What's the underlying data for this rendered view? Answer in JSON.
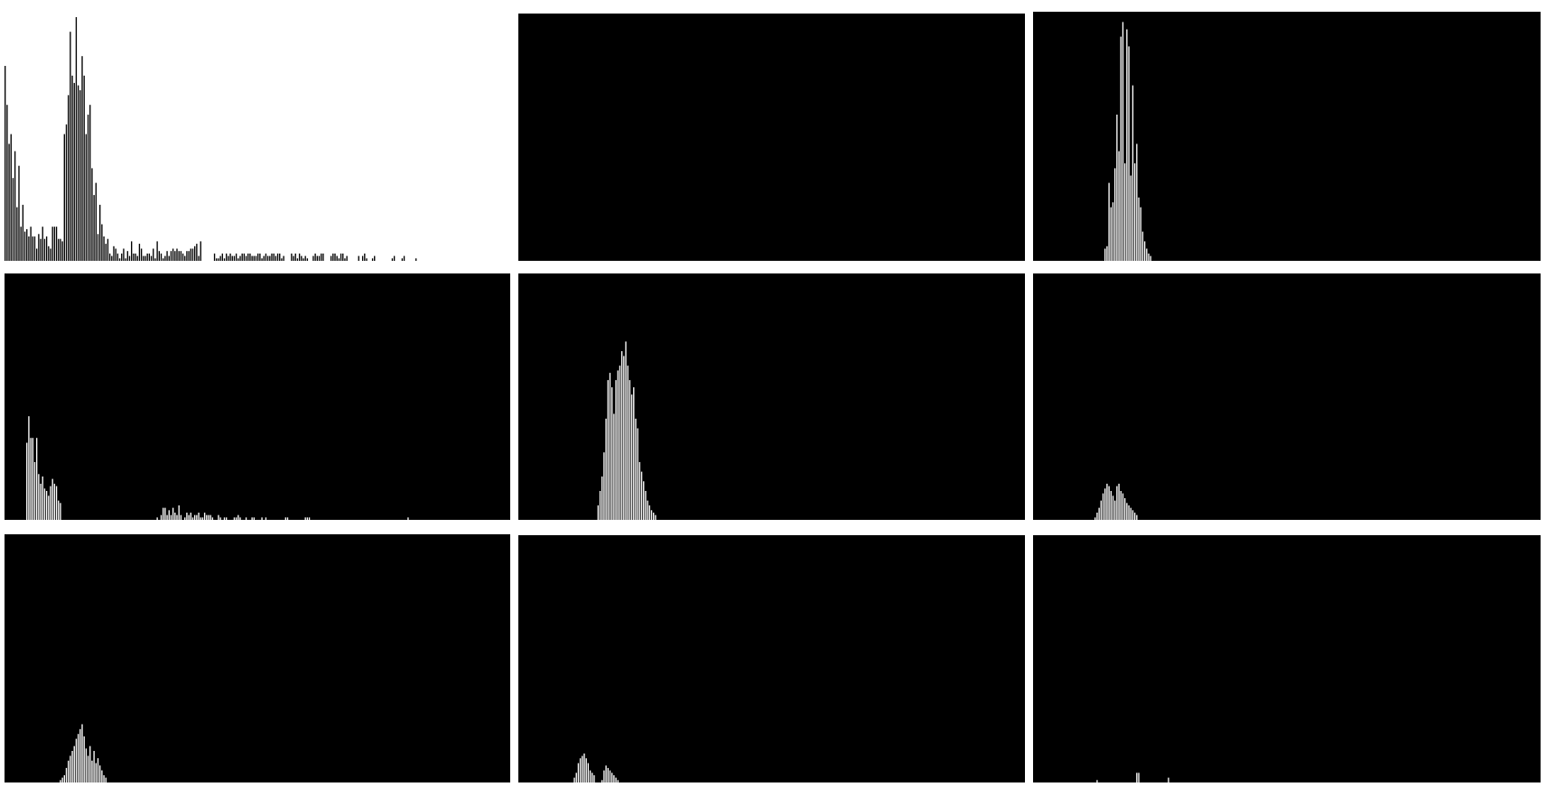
{
  "chart_data": [
    {
      "type": "bar",
      "title": "",
      "xlabel": "",
      "ylabel": "",
      "grid": false,
      "background": "#ffffff",
      "bar_color": "#000000",
      "ylim": [
        0,
        100
      ],
      "x_domain": [
        0,
        256
      ],
      "start": 0,
      "values": [
        80,
        64,
        48,
        52,
        34,
        45,
        22,
        39,
        14,
        23,
        12,
        13,
        10,
        14,
        10,
        10,
        5,
        11,
        9,
        14,
        9,
        10,
        6,
        5,
        14,
        14,
        14,
        9,
        9,
        8,
        52,
        56,
        68,
        94,
        76,
        73,
        100,
        72,
        70,
        84,
        76,
        52,
        60,
        64,
        38,
        27,
        32,
        11,
        23,
        15,
        10,
        7,
        9,
        3,
        2,
        6,
        5,
        3,
        1,
        3,
        5,
        1,
        4,
        2,
        8,
        3,
        3,
        2,
        7,
        5,
        2,
        2,
        3,
        3,
        2,
        5,
        1,
        8,
        4,
        3,
        1,
        2,
        4,
        2,
        4,
        5,
        4,
        5,
        4,
        4,
        3,
        2,
        4,
        4,
        5,
        5,
        6,
        7,
        2,
        8,
        0,
        0,
        0,
        0,
        0,
        0,
        3,
        1,
        1,
        2,
        3,
        1,
        3,
        2,
        3,
        2,
        2,
        3,
        1,
        2,
        3,
        3,
        2,
        3,
        3,
        2,
        2,
        2,
        3,
        3,
        1,
        2,
        3,
        2,
        2,
        3,
        3,
        2,
        3,
        3,
        1,
        2,
        0,
        0,
        0,
        3,
        2,
        3,
        1,
        3,
        2,
        1,
        2,
        1,
        0,
        0,
        2,
        3,
        2,
        2,
        3,
        3,
        0,
        0,
        0,
        2,
        3,
        3,
        2,
        1,
        3,
        3,
        1,
        2,
        0,
        0,
        0,
        0,
        0,
        2,
        0,
        2,
        3,
        1,
        0,
        0,
        1,
        2,
        0,
        0,
        0,
        0,
        0,
        0,
        0,
        0,
        1,
        2,
        0,
        0,
        0,
        1,
        2,
        0,
        0,
        0,
        0,
        0,
        1,
        0,
        0,
        0,
        0,
        0,
        0,
        0,
        0,
        0,
        0,
        0,
        0,
        0,
        0,
        0,
        0,
        0,
        0,
        0,
        0,
        0,
        0,
        0,
        0,
        0,
        0,
        0,
        0,
        0,
        0,
        0,
        0,
        0,
        0,
        0,
        0,
        0,
        0,
        0,
        0,
        0,
        0,
        0,
        0,
        0
      ]
    },
    {
      "type": "bar",
      "title": "",
      "xlabel": "",
      "ylabel": "",
      "grid": false,
      "background": "#000000",
      "bar_color": "#ffffff",
      "ylim": [
        0,
        100
      ],
      "x_domain": [
        0,
        256
      ],
      "start": 0,
      "values": []
    },
    {
      "type": "bar",
      "title": "",
      "xlabel": "",
      "ylabel": "",
      "grid": false,
      "background": "#000000",
      "bar_color": "#ffffff",
      "ylim": [
        0,
        100
      ],
      "x_domain": [
        0,
        256
      ],
      "start": 36,
      "values": [
        5,
        6,
        32,
        22,
        24,
        38,
        60,
        45,
        92,
        98,
        40,
        95,
        88,
        35,
        72,
        40,
        48,
        26,
        22,
        12,
        8,
        5,
        3,
        2
      ]
    },
    {
      "type": "bar",
      "title": "",
      "xlabel": "",
      "ylabel": "",
      "grid": false,
      "background": "#000000",
      "bar_color": "#ffffff",
      "ylim": [
        0,
        100
      ],
      "x_domain": [
        0,
        256
      ],
      "start": 11,
      "values": [
        32,
        43,
        34,
        34,
        24,
        34,
        19,
        15,
        18,
        13,
        12,
        10,
        14,
        17,
        15,
        14,
        8,
        7,
        0,
        0,
        0,
        0,
        0,
        0,
        0,
        0,
        0,
        0,
        0,
        0,
        0,
        0,
        0,
        0,
        0,
        0,
        0,
        0,
        0,
        0,
        0,
        0,
        0,
        0,
        0,
        0,
        0,
        0,
        0,
        0,
        0,
        0,
        0,
        0,
        0,
        0,
        0,
        0,
        0,
        0,
        0,
        0,
        0,
        0,
        0,
        0,
        1,
        0,
        2,
        5,
        5,
        2,
        4,
        2,
        5,
        3,
        2,
        6,
        2,
        0,
        1,
        3,
        2,
        3,
        1,
        2,
        2,
        3,
        1,
        1,
        3,
        2,
        2,
        2,
        1,
        0,
        0,
        2,
        1,
        0,
        1,
        1,
        0,
        0,
        0,
        1,
        1,
        2,
        1,
        0,
        0,
        1,
        0,
        0,
        1,
        1,
        0,
        0,
        0,
        1,
        0,
        1,
        0,
        0,
        0,
        0,
        0,
        0,
        0,
        0,
        0,
        1,
        1,
        0,
        0,
        0,
        0,
        0,
        0,
        0,
        0,
        1,
        1,
        1,
        0,
        0,
        0,
        0,
        0,
        0,
        0,
        0,
        0,
        0,
        0,
        0,
        0,
        0,
        0,
        0,
        0,
        0,
        0,
        0,
        0,
        0,
        0,
        0,
        0,
        0,
        0,
        0,
        0,
        0,
        0,
        0,
        0,
        0,
        0,
        0,
        0,
        0,
        0,
        0,
        0,
        0,
        0,
        0,
        0,
        0,
        0,
        0,
        0,
        1,
        0,
        0,
        0,
        0,
        0,
        0,
        0,
        0,
        0,
        0,
        0,
        0,
        0,
        0,
        0,
        0,
        0,
        0,
        0,
        0,
        0,
        0,
        0,
        0,
        0,
        0,
        0,
        0,
        0,
        0,
        0,
        0,
        0,
        0,
        0,
        0,
        0,
        0,
        0,
        0,
        0,
        0,
        0,
        0,
        0,
        0,
        0,
        0,
        0,
        0,
        0
      ]
    },
    {
      "type": "bar",
      "title": "",
      "xlabel": "",
      "ylabel": "",
      "grid": false,
      "background": "#000000",
      "bar_color": "#ffffff",
      "ylim": [
        0,
        100
      ],
      "x_domain": [
        0,
        256
      ],
      "start": 40,
      "values": [
        6,
        12,
        18,
        28,
        42,
        58,
        61,
        55,
        44,
        58,
        62,
        64,
        70,
        68,
        74,
        64,
        58,
        52,
        55,
        42,
        38,
        24,
        20,
        16,
        12,
        8,
        6,
        4,
        3,
        2
      ]
    },
    {
      "type": "bar",
      "title": "",
      "xlabel": "",
      "ylabel": "",
      "grid": false,
      "background": "#000000",
      "bar_color": "#ffffff",
      "ylim": [
        0,
        100
      ],
      "x_domain": [
        0,
        256
      ],
      "start": 31,
      "values": [
        1,
        3,
        5,
        8,
        11,
        13,
        15,
        14,
        12,
        10,
        8,
        14,
        15,
        12,
        11,
        9,
        7,
        6,
        5,
        4,
        3,
        2
      ]
    },
    {
      "type": "bar",
      "title": "",
      "xlabel": "",
      "ylabel": "",
      "grid": false,
      "background": "#000000",
      "bar_color": "#ffffff",
      "ylim": [
        0,
        100
      ],
      "x_domain": [
        0,
        256
      ],
      "start": 28,
      "values": [
        1,
        2,
        3,
        6,
        9,
        11,
        13,
        15,
        18,
        20,
        22,
        24,
        19,
        14,
        11,
        15,
        9,
        13,
        8,
        10,
        7,
        5,
        3,
        2
      ]
    },
    {
      "type": "bar",
      "title": "",
      "xlabel": "",
      "ylabel": "",
      "grid": false,
      "background": "#000000",
      "bar_color": "#ffffff",
      "ylim": [
        0,
        100
      ],
      "x_domain": [
        0,
        256
      ],
      "start": 28,
      "values": [
        2,
        4,
        8,
        10,
        11,
        12,
        10,
        8,
        5,
        4,
        3,
        0,
        0,
        0,
        1,
        5,
        7,
        6,
        5,
        4,
        3,
        2,
        1
      ]
    },
    {
      "type": "bar",
      "title": "",
      "xlabel": "",
      "ylabel": "",
      "grid": false,
      "background": "#000000",
      "bar_color": "#ffffff",
      "ylim": [
        0,
        100
      ],
      "x_domain": [
        0,
        256
      ],
      "start": 32,
      "values": [
        1,
        0,
        0,
        0,
        0,
        0,
        0,
        0,
        0,
        0,
        0,
        0,
        0,
        0,
        0,
        0,
        0,
        0,
        0,
        0,
        4,
        4,
        0,
        0,
        0,
        0,
        0,
        0,
        0,
        0,
        0,
        0,
        0,
        0,
        0,
        0,
        2
      ]
    }
  ]
}
